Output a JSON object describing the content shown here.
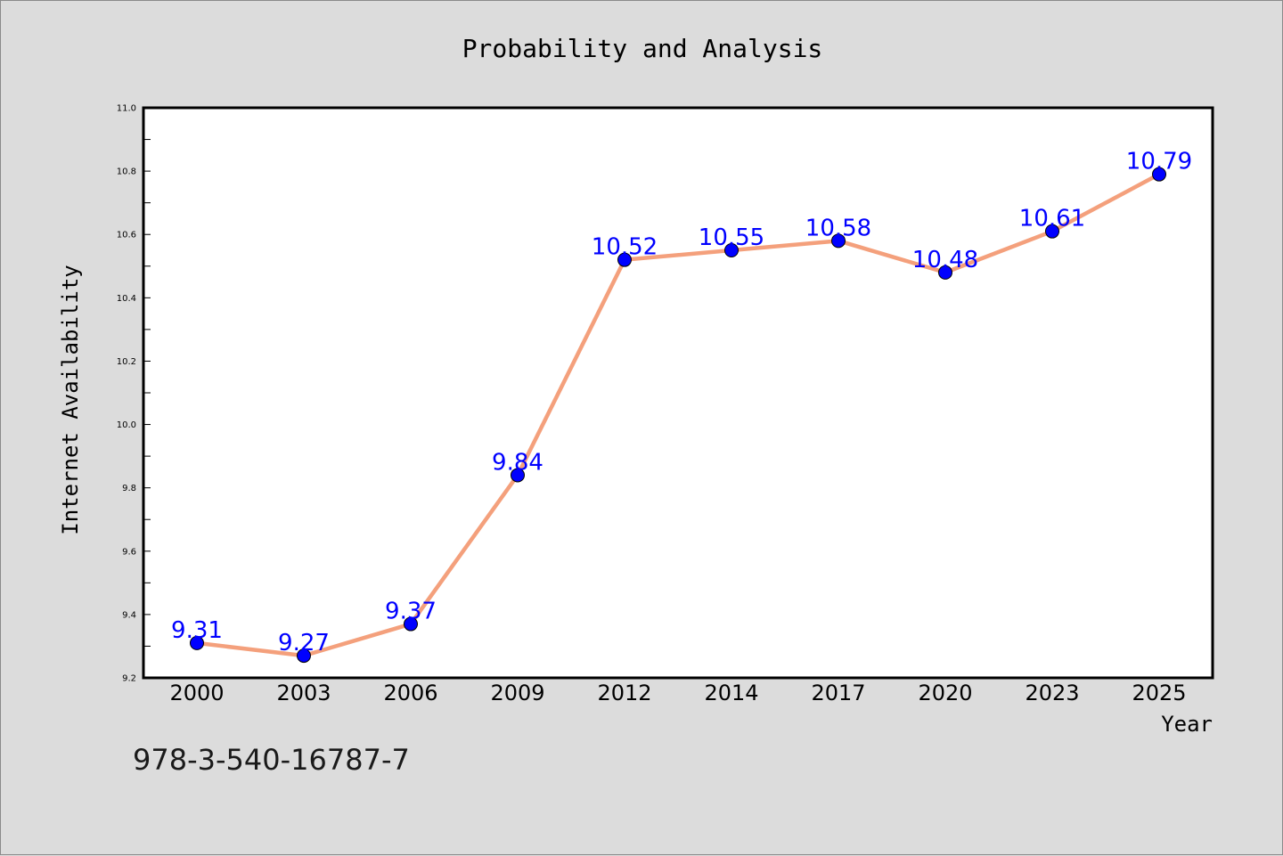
{
  "chart_data": {
    "type": "line",
    "title": "Probability and Analysis",
    "xlabel": "Year",
    "ylabel": "Internet Availability",
    "categories": [
      "2000",
      "2003",
      "2006",
      "2009",
      "2012",
      "2014",
      "2017",
      "2020",
      "2023",
      "2025"
    ],
    "series": [
      {
        "values": [
          9.31,
          9.27,
          9.37,
          9.84,
          10.52,
          10.55,
          10.58,
          10.48,
          10.61,
          10.79
        ],
        "line_color": "#f4a07c",
        "marker_color": "#0000ff"
      }
    ],
    "data_labels": [
      "9.31",
      "9.27",
      "9.37",
      "9.84",
      "10.52",
      "10.55",
      "10.58",
      "10.48",
      "10.61",
      "10.79"
    ],
    "ylim": [
      9.2,
      11.0
    ],
    "yticks": [
      "9.2",
      "9.4",
      "9.6",
      "9.8",
      "10.0",
      "10.2",
      "10.4",
      "10.6",
      "10.8",
      "11.0"
    ],
    "grid": false,
    "legend": "none"
  },
  "footer": {
    "isbn": "978-3-540-16787-7"
  },
  "colors": {
    "background": "#dcdcdc",
    "plot_area": "#ffffff",
    "line": "#f4a07c",
    "marker": "#0000ff",
    "data_label": "#0000ff"
  }
}
